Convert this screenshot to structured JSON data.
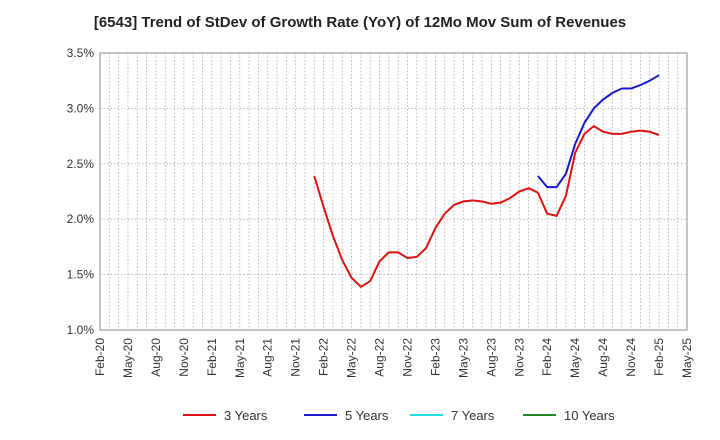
{
  "chart_data": {
    "type": "line",
    "title": "[6543]  Trend of StDev of Growth Rate (YoY) of 12Mo Mov Sum of Revenues",
    "ylim": [
      0.01,
      0.035
    ],
    "y_ticks": [
      0.01,
      0.015,
      0.02,
      0.025,
      0.03,
      0.035
    ],
    "y_tick_labels": [
      "1.0%",
      "1.5%",
      "2.0%",
      "2.5%",
      "3.0%",
      "3.5%"
    ],
    "x_tick_labels": [
      "Feb-20",
      "May-20",
      "Aug-20",
      "Nov-20",
      "Feb-21",
      "May-21",
      "Aug-21",
      "Nov-21",
      "Feb-22",
      "May-22",
      "Aug-22",
      "Nov-22",
      "Feb-23",
      "May-23",
      "Aug-23",
      "Nov-23",
      "Feb-24",
      "May-24",
      "Aug-24",
      "Nov-24",
      "Feb-25",
      "May-25"
    ],
    "x_range": [
      "2020-02",
      "2025-05"
    ],
    "grid": true,
    "legend_position": "bottom",
    "series": [
      {
        "name": "3 Years",
        "color": "#dd1111",
        "points": [
          [
            "2022-01",
            0.0239
          ],
          [
            "2022-02",
            0.0211
          ],
          [
            "2022-03",
            0.0185
          ],
          [
            "2022-04",
            0.0163
          ],
          [
            "2022-05",
            0.0147
          ],
          [
            "2022-06",
            0.0139
          ],
          [
            "2022-07",
            0.0144
          ],
          [
            "2022-08",
            0.0162
          ],
          [
            "2022-09",
            0.017
          ],
          [
            "2022-10",
            0.017
          ],
          [
            "2022-11",
            0.0165
          ],
          [
            "2022-12",
            0.0166
          ],
          [
            "2023-01",
            0.0174
          ],
          [
            "2023-02",
            0.0192
          ],
          [
            "2023-03",
            0.0205
          ],
          [
            "2023-04",
            0.0213
          ],
          [
            "2023-05",
            0.0216
          ],
          [
            "2023-06",
            0.0217
          ],
          [
            "2023-07",
            0.0216
          ],
          [
            "2023-08",
            0.0214
          ],
          [
            "2023-09",
            0.0215
          ],
          [
            "2023-10",
            0.0219
          ],
          [
            "2023-11",
            0.0225
          ],
          [
            "2023-12",
            0.0228
          ],
          [
            "2024-01",
            0.0224
          ],
          [
            "2024-02",
            0.0205
          ],
          [
            "2024-03",
            0.0203
          ],
          [
            "2024-04",
            0.0221
          ],
          [
            "2024-05",
            0.026
          ],
          [
            "2024-06",
            0.0277
          ],
          [
            "2024-07",
            0.0284
          ],
          [
            "2024-08",
            0.0279
          ],
          [
            "2024-09",
            0.0277
          ],
          [
            "2024-10",
            0.0277
          ],
          [
            "2024-11",
            0.0279
          ],
          [
            "2024-12",
            0.028
          ],
          [
            "2025-01",
            0.0279
          ],
          [
            "2025-02",
            0.0276
          ]
        ]
      },
      {
        "name": "5 Years",
        "color": "#1a1acc",
        "points": [
          [
            "2024-01",
            0.0239
          ],
          [
            "2024-02",
            0.0229
          ],
          [
            "2024-03",
            0.0229
          ],
          [
            "2024-04",
            0.0241
          ],
          [
            "2024-05",
            0.0268
          ],
          [
            "2024-06",
            0.0287
          ],
          [
            "2024-07",
            0.03
          ],
          [
            "2024-08",
            0.0308
          ],
          [
            "2024-09",
            0.0314
          ],
          [
            "2024-10",
            0.0318
          ],
          [
            "2024-11",
            0.0318
          ],
          [
            "2024-12",
            0.0321
          ],
          [
            "2025-01",
            0.0325
          ],
          [
            "2025-02",
            0.033
          ]
        ]
      },
      {
        "name": "7 Years",
        "color": "#22dddd",
        "points": []
      },
      {
        "name": "10 Years",
        "color": "#228822",
        "points": []
      }
    ]
  }
}
